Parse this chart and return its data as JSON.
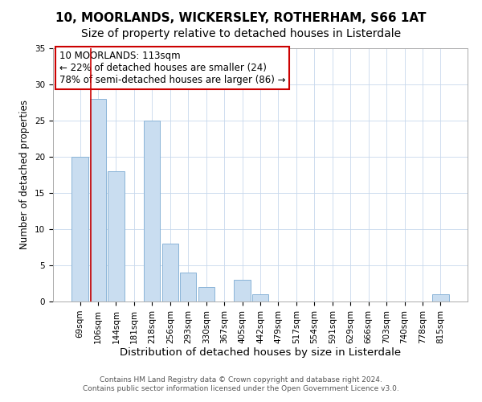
{
  "title": "10, MOORLANDS, WICKERSLEY, ROTHERHAM, S66 1AT",
  "subtitle": "Size of property relative to detached houses in Listerdale",
  "xlabel": "Distribution of detached houses by size in Listerdale",
  "ylabel": "Number of detached properties",
  "bar_labels": [
    "69sqm",
    "106sqm",
    "144sqm",
    "181sqm",
    "218sqm",
    "256sqm",
    "293sqm",
    "330sqm",
    "367sqm",
    "405sqm",
    "442sqm",
    "479sqm",
    "517sqm",
    "554sqm",
    "591sqm",
    "629sqm",
    "666sqm",
    "703sqm",
    "740sqm",
    "778sqm",
    "815sqm"
  ],
  "bar_values": [
    20,
    28,
    18,
    0,
    25,
    8,
    4,
    2,
    0,
    3,
    1,
    0,
    0,
    0,
    0,
    0,
    0,
    0,
    0,
    0,
    1
  ],
  "bar_color": "#c9ddf0",
  "bar_edgecolor": "#8ab4d8",
  "ylim": [
    0,
    35
  ],
  "vline_color": "#cc0000",
  "vline_x_index": 1.0,
  "annotation_title": "10 MOORLANDS: 113sqm",
  "annotation_line1": "← 22% of detached houses are smaller (24)",
  "annotation_line2": "78% of semi-detached houses are larger (86) →",
  "annotation_box_facecolor": "#ffffff",
  "annotation_box_edgecolor": "#cc0000",
  "footer1": "Contains HM Land Registry data © Crown copyright and database right 2024.",
  "footer2": "Contains public sector information licensed under the Open Government Licence v3.0.",
  "title_fontsize": 11,
  "subtitle_fontsize": 10,
  "xlabel_fontsize": 9.5,
  "ylabel_fontsize": 8.5,
  "tick_fontsize": 7.5,
  "annotation_fontsize": 8.5,
  "footer_fontsize": 6.5,
  "grid_color": "#c8d8ec",
  "spine_color": "#aaaaaa"
}
